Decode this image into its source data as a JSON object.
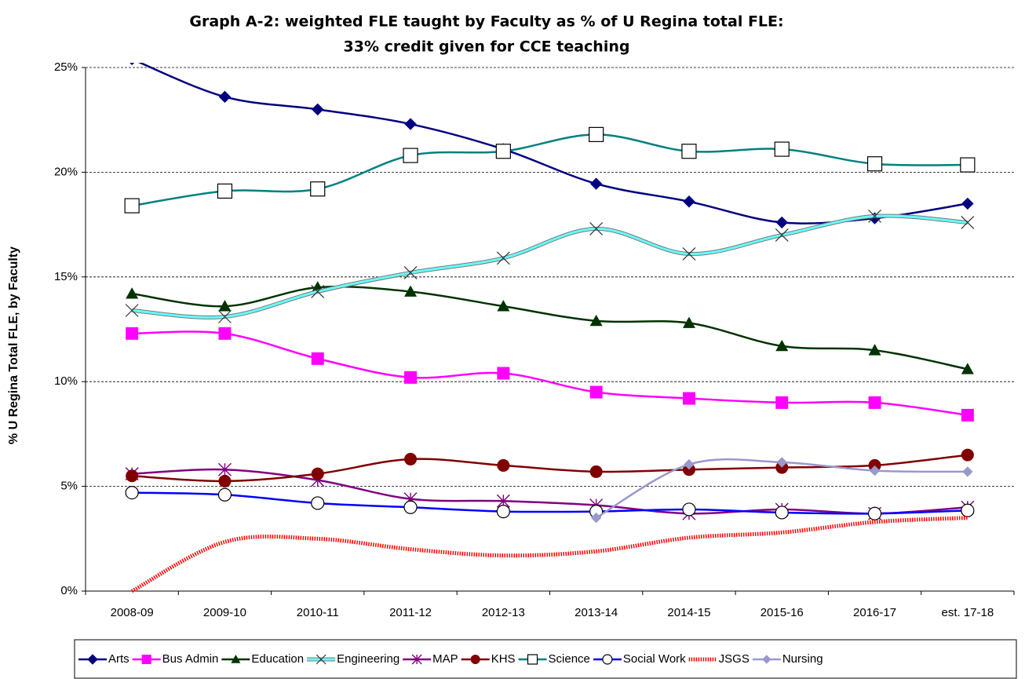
{
  "chart_data": {
    "type": "line",
    "title": "Graph A-2: weighted FLE taught by Faculty as % of U Regina total FLE:",
    "subtitle": "33% credit given for CCE teaching",
    "y_label": "% U Regina Total FLE, by Faculty",
    "categories": [
      "2008-09",
      "2009-10",
      "2010-11",
      "2011-12",
      "2012-13",
      "2013-14",
      "2014-15",
      "2015-16",
      "2016-17",
      "est. 17-18"
    ],
    "ylim": [
      0,
      25
    ],
    "yticks": [
      {
        "value": 0,
        "label": "0%"
      },
      {
        "value": 5,
        "label": "5%"
      },
      {
        "value": 10,
        "label": "10%"
      },
      {
        "value": 15,
        "label": "15%"
      },
      {
        "value": 20,
        "label": "20%"
      },
      {
        "value": 25,
        "label": "25%"
      }
    ],
    "grid": true,
    "smooth": true,
    "legend": "bottom",
    "series": [
      {
        "name": "Arts",
        "color": "#000080",
        "marker": "diamond",
        "values": [
          25.4,
          23.6,
          23.0,
          22.3,
          21.1,
          19.45,
          18.6,
          17.6,
          17.8,
          18.5
        ]
      },
      {
        "name": "Bus Admin",
        "color": "#ff00ff",
        "marker": "square",
        "values": [
          12.3,
          12.3,
          11.1,
          10.2,
          10.4,
          9.5,
          9.2,
          9.0,
          9.0,
          8.4
        ]
      },
      {
        "name": "Education",
        "color": "#003300",
        "marker": "triangle",
        "values": [
          14.2,
          13.6,
          14.5,
          14.3,
          13.6,
          12.9,
          12.8,
          11.7,
          11.5,
          10.6
        ]
      },
      {
        "name": "Engineering",
        "color": "#66ffff",
        "marker": "x",
        "outline": true,
        "values": [
          13.4,
          13.1,
          14.3,
          15.2,
          15.9,
          17.3,
          16.1,
          17.0,
          17.9,
          17.6
        ]
      },
      {
        "name": "MAP",
        "color": "#800080",
        "marker": "star",
        "values": [
          5.6,
          5.8,
          5.3,
          4.4,
          4.3,
          4.1,
          3.7,
          3.9,
          3.7,
          4.0
        ]
      },
      {
        "name": "KHS",
        "color": "#800000",
        "marker": "circle",
        "values": [
          5.5,
          5.25,
          5.6,
          6.3,
          6.0,
          5.7,
          5.8,
          5.9,
          6.0,
          6.5
        ]
      },
      {
        "name": "Science",
        "color": "#008080",
        "marker": "open-square",
        "values": [
          18.4,
          19.1,
          19.2,
          20.8,
          21.0,
          21.8,
          21.0,
          21.1,
          20.4,
          20.35
        ]
      },
      {
        "name": "Social Work",
        "color": "#0000ff",
        "marker": "open-circle",
        "values": [
          4.7,
          4.6,
          4.2,
          4.0,
          3.8,
          3.8,
          3.9,
          3.75,
          3.7,
          3.85
        ]
      },
      {
        "name": "JSGS",
        "color": "#ff0000",
        "marker": "none",
        "dotted": true,
        "values": [
          0,
          2.35,
          2.5,
          2.0,
          1.7,
          1.9,
          2.55,
          2.8,
          3.3,
          3.5
        ]
      },
      {
        "name": "Nursing",
        "color": "#9999cc",
        "marker": "diamond",
        "values": [
          null,
          null,
          null,
          null,
          null,
          3.5,
          6.05,
          6.15,
          5.75,
          5.7
        ]
      }
    ]
  }
}
